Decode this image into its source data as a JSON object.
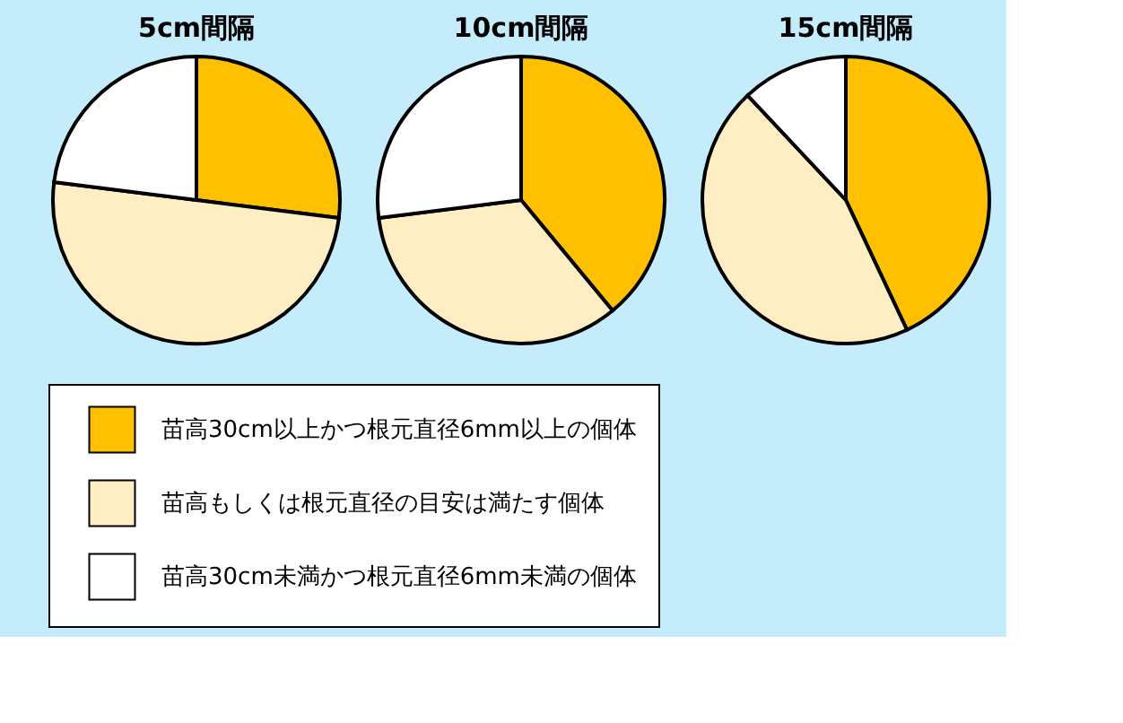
{
  "chart_data": [
    {
      "type": "pie",
      "title": "5cm間隔",
      "categories": [
        "苗高30cm以上かつ根元直径6mm以上の個体",
        "苗高もしくは根元直径の目安は満たす個体",
        "苗高30cm未満かつ根元直径6mm未満の個体"
      ],
      "values": [
        27,
        50,
        23
      ],
      "colors": [
        "#ffc000",
        "#ffeec4",
        "#ffffff"
      ],
      "legend": "bottom"
    },
    {
      "type": "pie",
      "title": "10cm間隔",
      "categories": [
        null,
        null,
        null
      ],
      "values": [
        39,
        34,
        27
      ],
      "colors": [
        "#ffc000",
        "#ffeec4",
        "#ffffff"
      ]
    },
    {
      "type": "pie",
      "title": "15cm間隔",
      "categories": [
        null,
        null,
        null
      ],
      "values": [
        43,
        45,
        12
      ],
      "colors": [
        "#ffc000",
        "#ffeec4",
        "#ffffff"
      ]
    }
  ]
}
